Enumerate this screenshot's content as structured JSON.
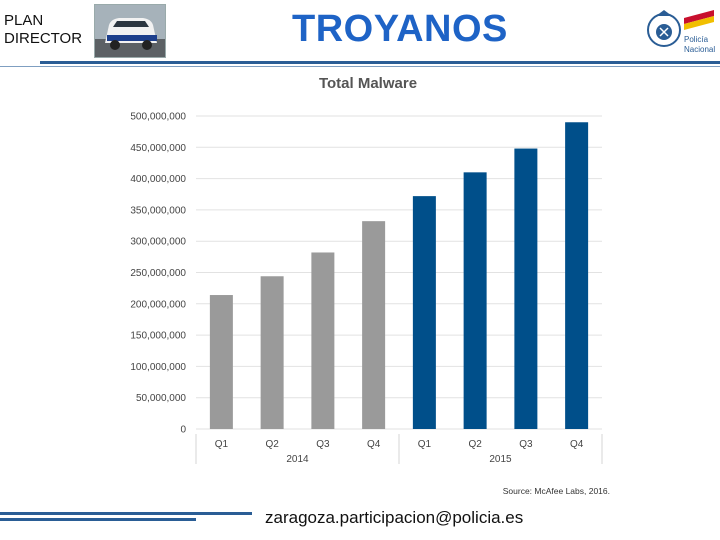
{
  "header": {
    "plan_line1": "PLAN",
    "plan_line2": "DIRECTOR",
    "title": "TROYANOS"
  },
  "emblem": {
    "logo_text_line1": "Policía",
    "logo_text_line2": "Nacional"
  },
  "footer": {
    "email": "zaragoza.participacion@policia.es"
  },
  "chart_data": {
    "type": "bar",
    "title": "Total Malware",
    "source": "Source: McAfee Labs, 2016.",
    "categories": [
      "Q1",
      "Q2",
      "Q3",
      "Q4",
      "Q1",
      "Q2",
      "Q3",
      "Q4"
    ],
    "groups": [
      {
        "label": "2014",
        "indices": [
          0,
          1,
          2,
          3
        ]
      },
      {
        "label": "2015",
        "indices": [
          4,
          5,
          6,
          7
        ]
      }
    ],
    "values": [
      214000000,
      244000000,
      282000000,
      332000000,
      372000000,
      410000000,
      448000000,
      490000000
    ],
    "colors": [
      "#9a9a9a",
      "#9a9a9a",
      "#9a9a9a",
      "#9a9a9a",
      "#004f8a",
      "#004f8a",
      "#004f8a",
      "#004f8a"
    ],
    "ylim": [
      0,
      500000000
    ],
    "yticks": [
      "0",
      "50,000,000",
      "100,000,000",
      "150,000,000",
      "200,000,000",
      "250,000,000",
      "300,000,000",
      "350,000,000",
      "400,000,000",
      "450,000,000",
      "500,000,000"
    ],
    "grid": true
  }
}
